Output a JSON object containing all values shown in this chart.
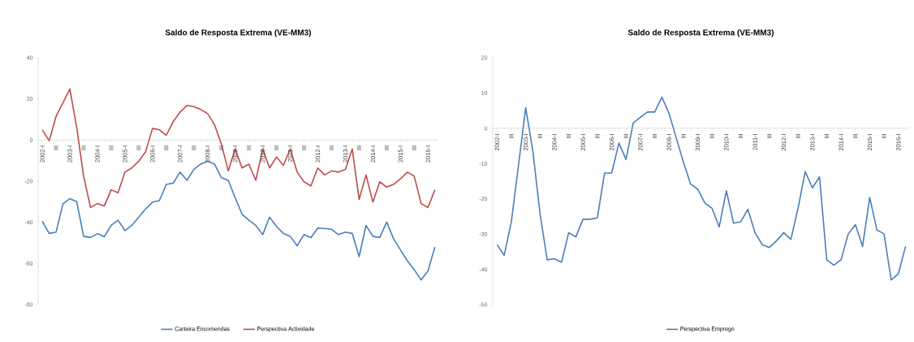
{
  "chart_data": [
    {
      "type": "line",
      "title": "Saldo de Resposta Extrema (VE-MM3)",
      "categories": [
        "2002-I",
        null,
        "III",
        null,
        "2003-I",
        null,
        "III",
        null,
        "2004-I",
        null,
        "III",
        null,
        "2005-I",
        null,
        "III",
        null,
        "2006-I",
        null,
        "III",
        null,
        "2007-I",
        null,
        "III",
        null,
        "2008-I",
        null,
        "III",
        null,
        "2009-I",
        null,
        "III",
        null,
        "2010-I",
        null,
        "III",
        null,
        "2011-I",
        null,
        "III",
        null,
        "2012-I",
        null,
        "III",
        null,
        "2013-I",
        null,
        "III",
        null,
        "2014-I",
        null,
        "III",
        null,
        "2015-I",
        null,
        "III",
        null,
        "2016-I",
        null
      ],
      "series": [
        {
          "name": "Carteira Encomendas",
          "color": "#4a7ebb",
          "values": [
            -39.5,
            -45.4,
            -44.8,
            -31,
            -28.5,
            -30,
            -46.8,
            -47.4,
            -45.5,
            -47,
            -41.5,
            -39,
            -44,
            -41.5,
            -37.5,
            -33.5,
            -30.2,
            -29.5,
            -21.6,
            -21,
            -15.6,
            -19.6,
            -14.3,
            -11.7,
            -10.3,
            -11.7,
            -18.3,
            -19.6,
            -28,
            -36,
            -39,
            -41.5,
            -46,
            -37.5,
            -42,
            -45.4,
            -46.8,
            -51.4,
            -46,
            -47.4,
            -42.8,
            -43,
            -43.4,
            -46,
            -44.8,
            -45.4,
            -56.7,
            -41.5,
            -46.8,
            -47.4,
            -39.9,
            -48,
            -53.4,
            -58.7,
            -63,
            -68,
            -63.6,
            -52
          ]
        },
        {
          "name": "Perspectiva Actividade",
          "color": "#be4b48",
          "values": [
            4.9,
            -0.4,
            11.5,
            18,
            24.8,
            6,
            -17.6,
            -32.8,
            -30.9,
            -32,
            -24.2,
            -25.6,
            -15.6,
            -13.6,
            -10.3,
            -5.7,
            5.6,
            5,
            2.3,
            8.9,
            13.5,
            16.8,
            16.2,
            14.8,
            12.8,
            7.5,
            -2,
            -15,
            -4.4,
            -13.6,
            -11.7,
            -19.6,
            -4.4,
            -13.6,
            -8.3,
            -12.3,
            -4.4,
            -15.6,
            -20.3,
            -22.3,
            -13.6,
            -17,
            -15,
            -15.6,
            -14.3,
            -4.4,
            -28.9,
            -17,
            -30.2,
            -20.3,
            -22.9,
            -21.6,
            -18.9,
            -15.6,
            -17.6,
            -30.9,
            -32.8,
            -24.2
          ]
        }
      ],
      "ylim": [
        -80,
        40
      ],
      "yticks": [
        -80,
        -60,
        -40,
        -20,
        0,
        20,
        40
      ],
      "legend": "bottom",
      "grid": false
    },
    {
      "type": "line",
      "title": "Saldo de Resposta Extrema (VE-MM3)",
      "categories": [
        "2002-I",
        null,
        "III",
        null,
        "2003-I",
        null,
        "III",
        null,
        "2004-I",
        null,
        "III",
        null,
        "2005-I",
        null,
        "III",
        null,
        "2006-I",
        null,
        "III",
        null,
        "2007-I",
        null,
        "III",
        null,
        "2008-I",
        null,
        "III",
        null,
        "2009-I",
        null,
        "III",
        null,
        "2010-I",
        null,
        "III",
        null,
        "2011-I",
        null,
        "III",
        null,
        "2012-I",
        null,
        "III",
        null,
        "2013-I",
        null,
        "III",
        null,
        "2014-I",
        null,
        "III",
        null,
        "2015-I",
        null,
        "III",
        null,
        "2016-I",
        null
      ],
      "series": [
        {
          "name": "Perspectiva Emprego",
          "color": "#4a7ebb",
          "values": [
            -33,
            -36,
            -26.5,
            -10.4,
            5.8,
            -6.5,
            -24.2,
            -37.3,
            -37,
            -38,
            -29.6,
            -30.8,
            -25.8,
            -25.8,
            -25.4,
            -12.7,
            -12.7,
            -4.2,
            -8.8,
            1.5,
            3.1,
            4.6,
            4.6,
            8.8,
            4.2,
            -2.7,
            -9.6,
            -15.8,
            -17.3,
            -21.2,
            -22.7,
            -28,
            -17.7,
            -26.9,
            -26.5,
            -23,
            -29.6,
            -33,
            -33.8,
            -31.9,
            -29.6,
            -31.5,
            -22.7,
            -12.3,
            -16.9,
            -13.8,
            -37.3,
            -38.8,
            -37.3,
            -30,
            -27.3,
            -33.5,
            -19.6,
            -28.8,
            -30,
            -43,
            -41.2,
            -33.5
          ]
        }
      ],
      "ylim": [
        -50,
        20
      ],
      "yticks": [
        -50,
        -40,
        -30,
        -20,
        -10,
        0,
        10,
        20
      ],
      "legend": "bottom",
      "grid": false
    }
  ]
}
